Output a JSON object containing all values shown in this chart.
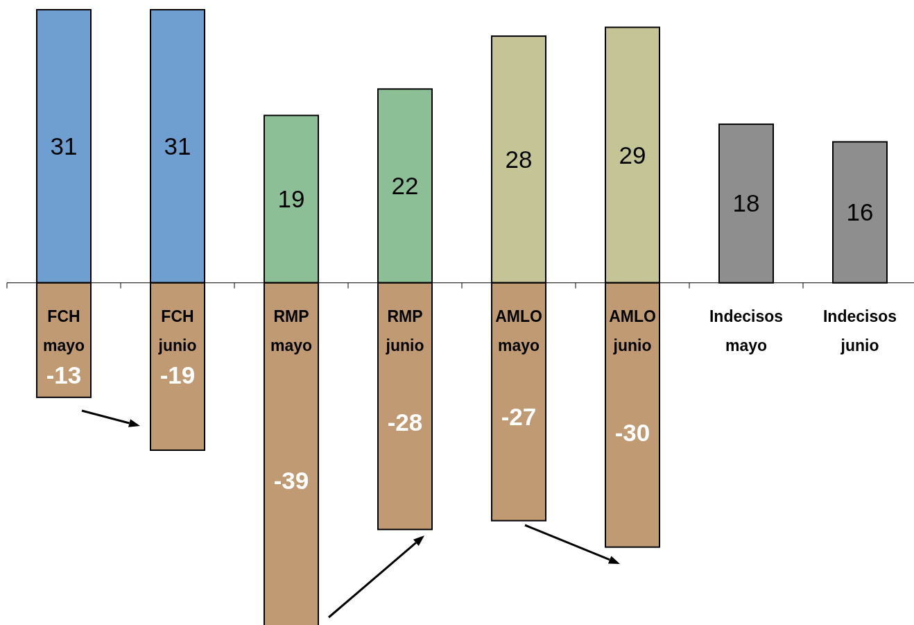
{
  "chart_data": {
    "type": "bar",
    "stacked": true,
    "data_labels": true,
    "categories": [
      "FCH mayo",
      "FCH junio",
      "RMP mayo",
      "RMP junio",
      "AMLO mayo",
      "AMLO junio",
      "Indecisos mayo",
      "Indecisos junio"
    ],
    "series": [
      {
        "values": [
          31,
          31,
          19,
          22,
          28,
          29,
          18,
          16
        ],
        "colors": [
          "#6f9fd0",
          "#6f9fd0",
          "#8cbf96",
          "#8cbf96",
          "#c4c496",
          "#c4c496",
          "#8e8e8e",
          "#8e8e8e"
        ]
      },
      {
        "values": [
          -13,
          -19,
          -39,
          -28,
          -27,
          -30,
          null,
          null
        ],
        "color": "#c09a73"
      }
    ]
  }
}
